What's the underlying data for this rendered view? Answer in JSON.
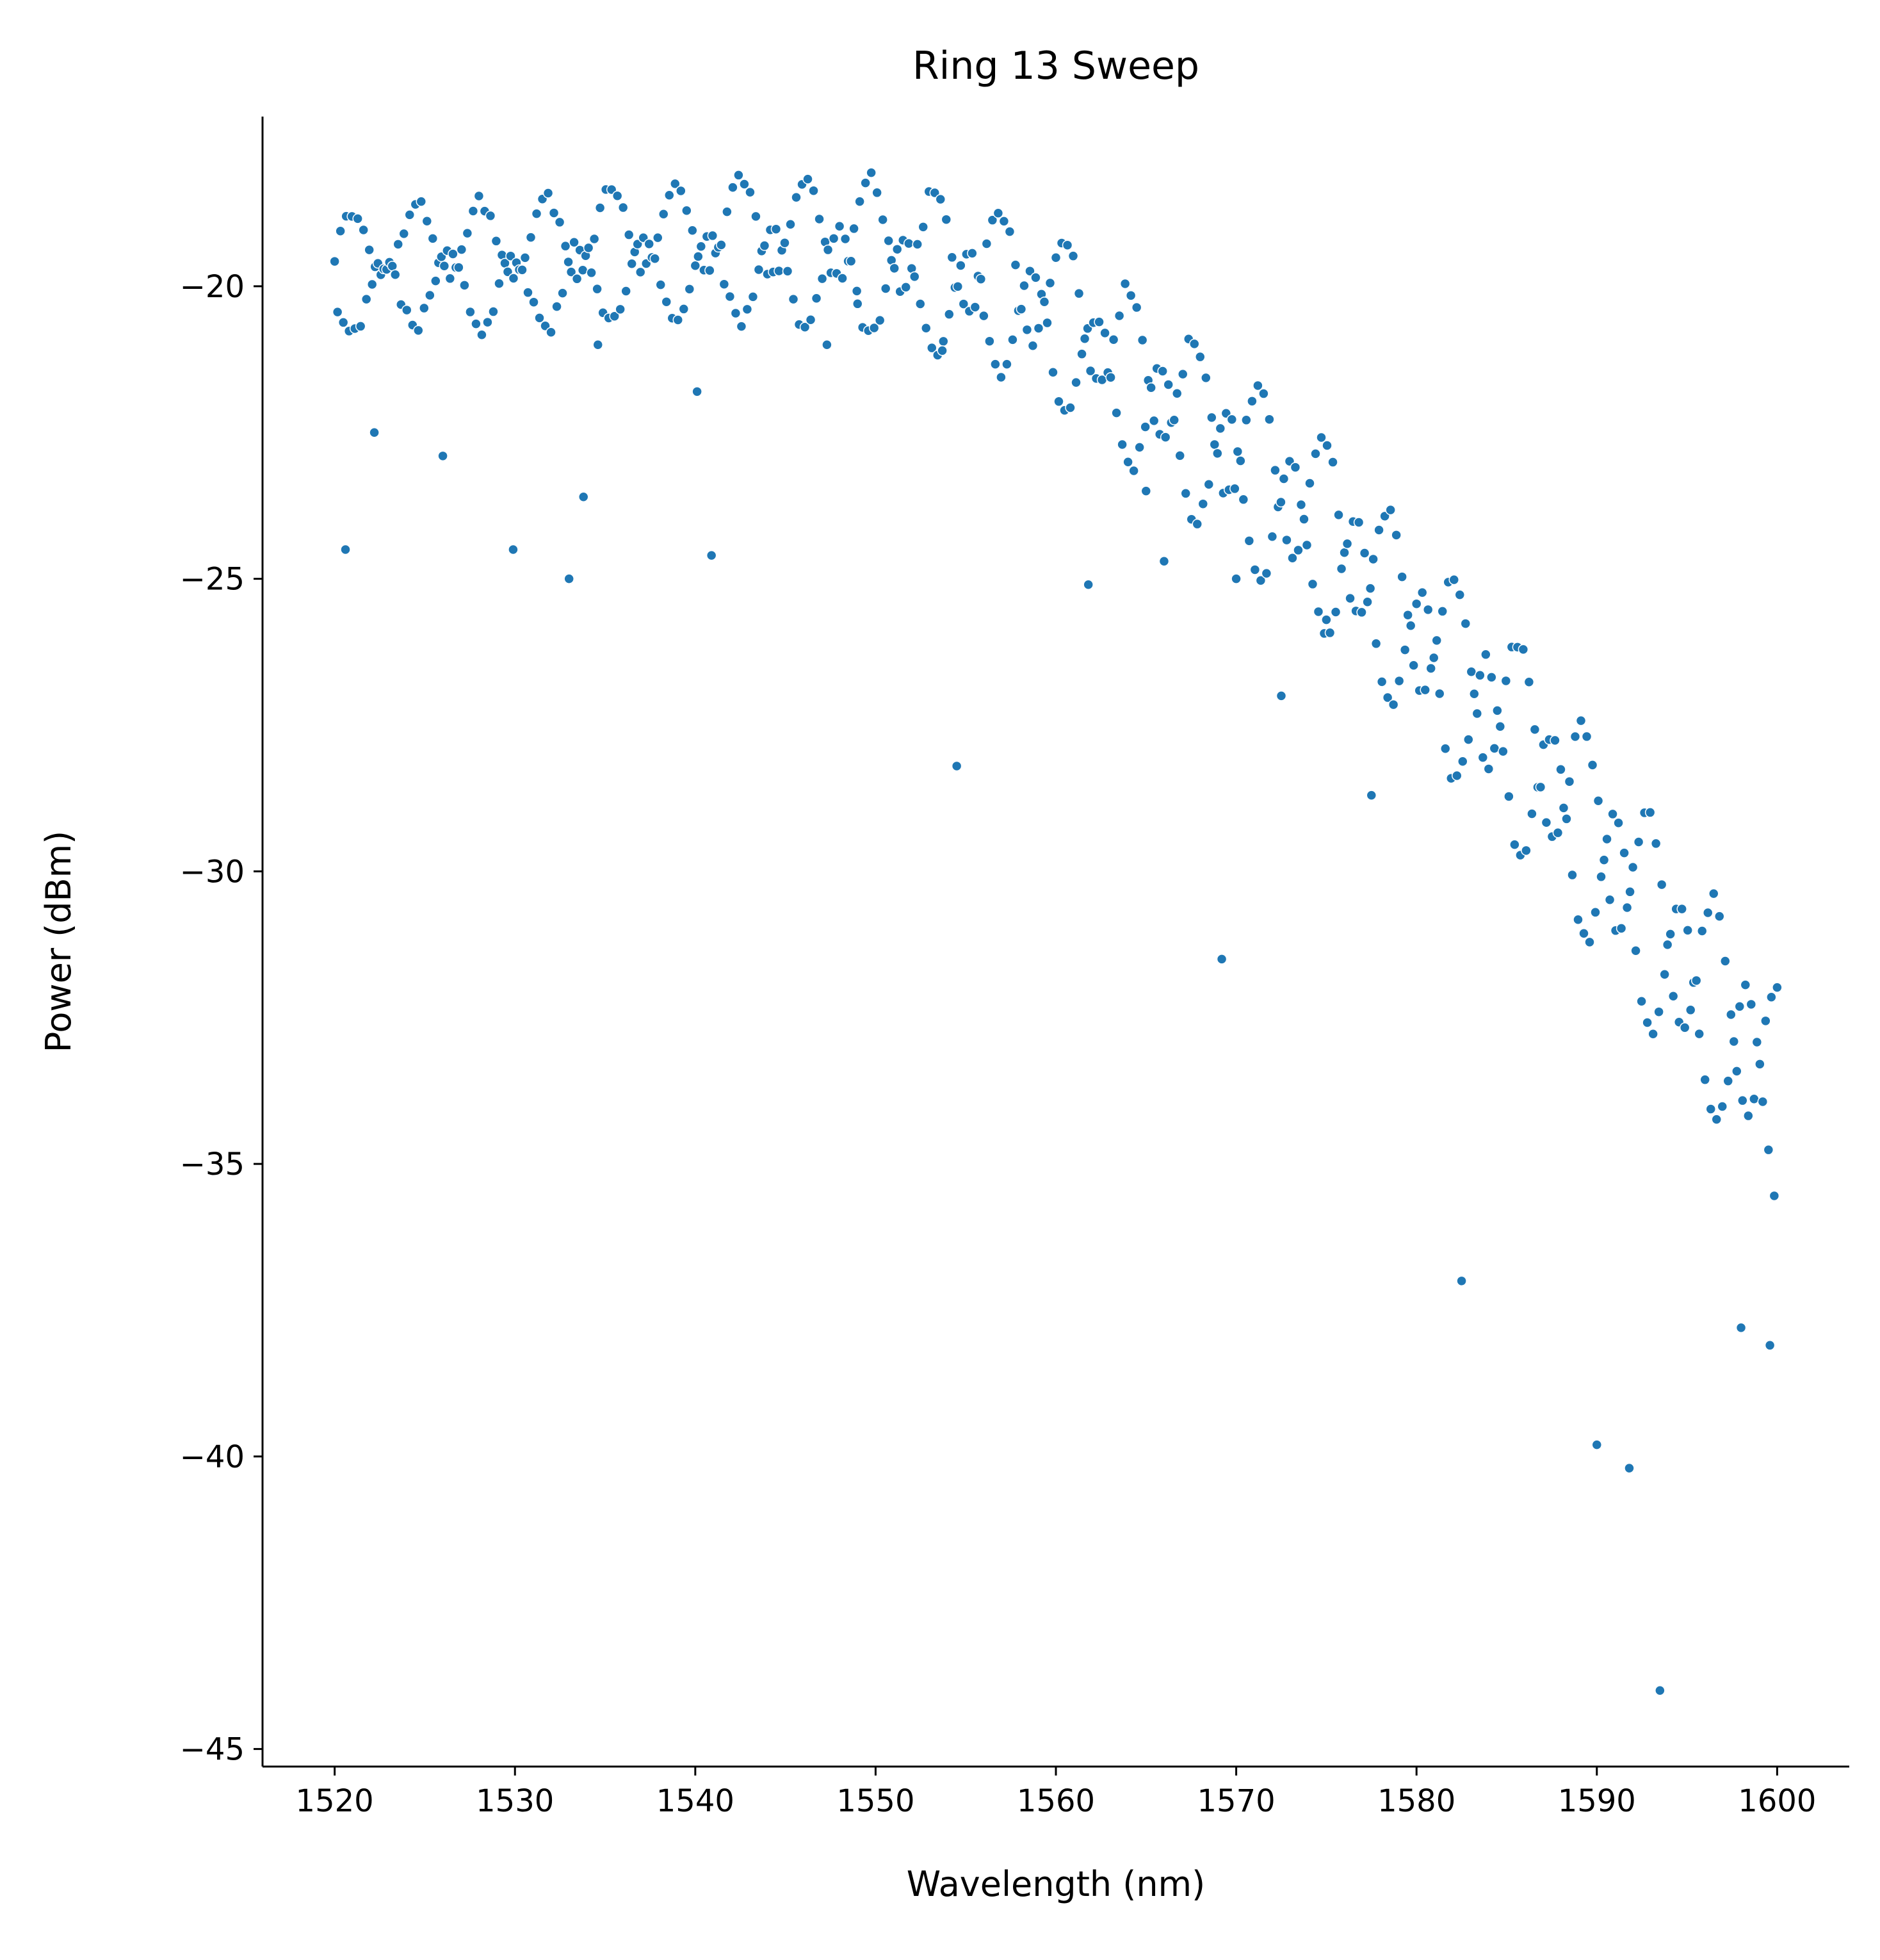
{
  "chart_data": {
    "type": "scatter",
    "title": "Ring 13 Sweep",
    "xlabel": "Wavelength (nm)",
    "ylabel": "Power (dBm)",
    "xlim": [
      1516,
      1604
    ],
    "ylim": [
      -45.3,
      -17.1
    ],
    "xticks": [
      1520,
      1530,
      1540,
      1550,
      1560,
      1570,
      1580,
      1590,
      1600
    ],
    "yticks": [
      -20,
      -25,
      -30,
      -35,
      -40,
      -45
    ],
    "xtick_labels": [
      "1520",
      "1530",
      "1540",
      "1550",
      "1560",
      "1570",
      "1580",
      "1590",
      "1600"
    ],
    "ytick_labels": [
      "−20",
      "−25",
      "−30",
      "−35",
      "−40",
      "−45"
    ],
    "grid": false,
    "legend": "none",
    "series": [
      {
        "color": "#1f77b4",
        "trend": [
          [
            1520,
            -19.9
          ],
          [
            1525,
            -19.6
          ],
          [
            1530,
            -19.7
          ],
          [
            1535,
            -19.5
          ],
          [
            1540,
            -19.4
          ],
          [
            1545,
            -19.4
          ],
          [
            1550,
            -19.5
          ],
          [
            1555,
            -19.9
          ],
          [
            1560,
            -20.5
          ],
          [
            1565,
            -21.8
          ],
          [
            1570,
            -23.0
          ],
          [
            1575,
            -24.3
          ],
          [
            1580,
            -26.0
          ],
          [
            1585,
            -27.6
          ],
          [
            1590,
            -29.6
          ],
          [
            1595,
            -31.8
          ],
          [
            1600,
            -33.8
          ]
        ],
        "ripple_period_nm": 3.6,
        "ripple_amplitude_db": 0.55,
        "ripple_amplitude_growth_db_per_nm": 0.012,
        "branch_offset_db": 0.45,
        "sample_step_nm": 0.16,
        "outliers": [
          [
            1520.6,
            -24.5
          ],
          [
            1522.2,
            -22.5
          ],
          [
            1526.0,
            -22.9
          ],
          [
            1529.9,
            -24.5
          ],
          [
            1533.0,
            -25.0
          ],
          [
            1533.8,
            -23.6
          ],
          [
            1534.6,
            -21.0
          ],
          [
            1540.1,
            -21.8
          ],
          [
            1540.9,
            -24.6
          ],
          [
            1547.3,
            -21.0
          ],
          [
            1549.0,
            -20.3
          ],
          [
            1553.7,
            -21.1
          ],
          [
            1554.5,
            -28.2
          ],
          [
            1561.8,
            -25.1
          ],
          [
            1565.0,
            -23.5
          ],
          [
            1566.0,
            -24.7
          ],
          [
            1569.2,
            -31.5
          ],
          [
            1570.0,
            -25.0
          ],
          [
            1572.5,
            -27.0
          ],
          [
            1575.0,
            -25.7
          ],
          [
            1577.5,
            -28.7
          ],
          [
            1582.5,
            -37.0
          ],
          [
            1590.0,
            -39.8
          ],
          [
            1591.8,
            -40.2
          ],
          [
            1593.5,
            -44.0
          ],
          [
            1598.0,
            -37.8
          ],
          [
            1599.6,
            -38.1
          ]
        ]
      }
    ]
  }
}
